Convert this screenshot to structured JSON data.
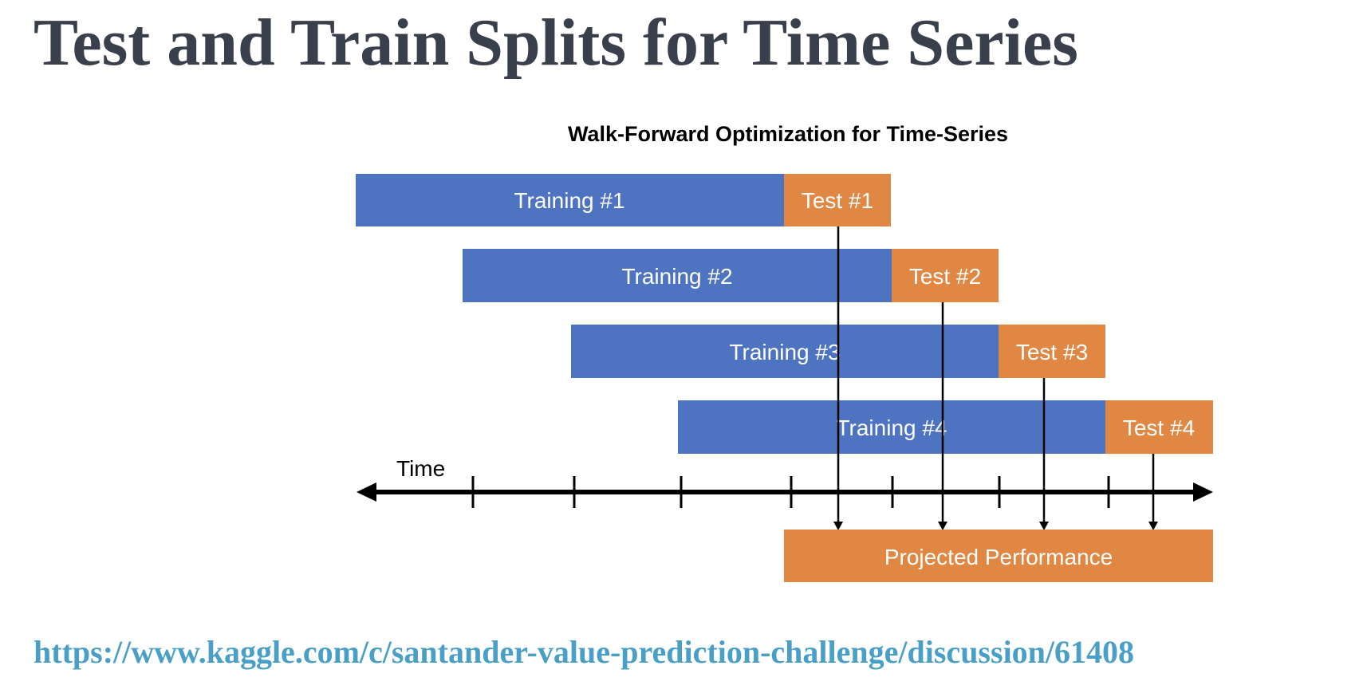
{
  "slide": {
    "title": "Test and Train Splits for Time Series",
    "source_link": "https://www.kaggle.com/c/santander-value-prediction-challenge/discussion/61408"
  },
  "diagram": {
    "title": "Walk-Forward Optimization for Time-Series",
    "colors": {
      "training": "#4e73c0",
      "test": "#e08743",
      "axis": "#000000",
      "text_on_bar": "#ffffff"
    },
    "time_label": "Time",
    "splits": [
      {
        "training_label": "Training #1",
        "test_label": "Test #1"
      },
      {
        "training_label": "Training #2",
        "test_label": "Test #2"
      },
      {
        "training_label": "Training #3",
        "test_label": "Test #3"
      },
      {
        "training_label": "Training #4",
        "test_label": "Test #4"
      }
    ],
    "result_label": "Projected Performance"
  }
}
